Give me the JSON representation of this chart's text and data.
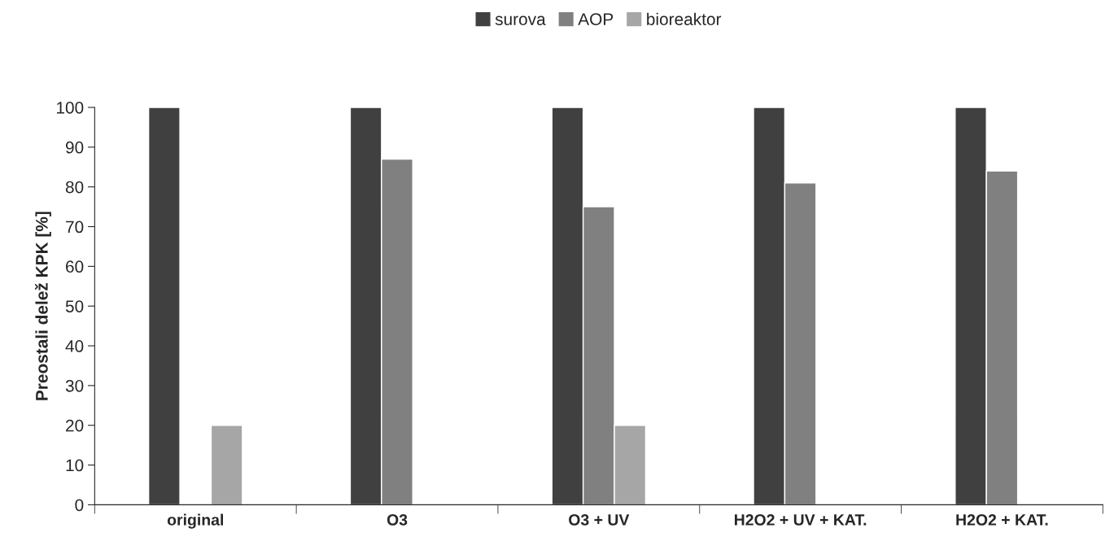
{
  "chart_data": {
    "type": "bar",
    "ylabel": "Preostali delež KPK [%]",
    "categories": [
      "original",
      "O3",
      "O3 + UV",
      "H2O2 + UV + KAT.",
      "H2O2 + KAT."
    ],
    "series": [
      {
        "name": "surova",
        "color": "#404040",
        "values": [
          100,
          100,
          100,
          100,
          100
        ]
      },
      {
        "name": "AOP",
        "color": "#808080",
        "values": [
          null,
          87,
          75,
          81,
          84
        ]
      },
      {
        "name": "bioreaktor",
        "color": "#a6a6a6",
        "values": [
          20,
          null,
          20,
          null,
          null
        ]
      }
    ],
    "ylim": [
      0,
      100
    ],
    "yticks": [
      0,
      10,
      20,
      30,
      40,
      50,
      60,
      70,
      80,
      90,
      100
    ],
    "grid": false,
    "legend": "top"
  }
}
